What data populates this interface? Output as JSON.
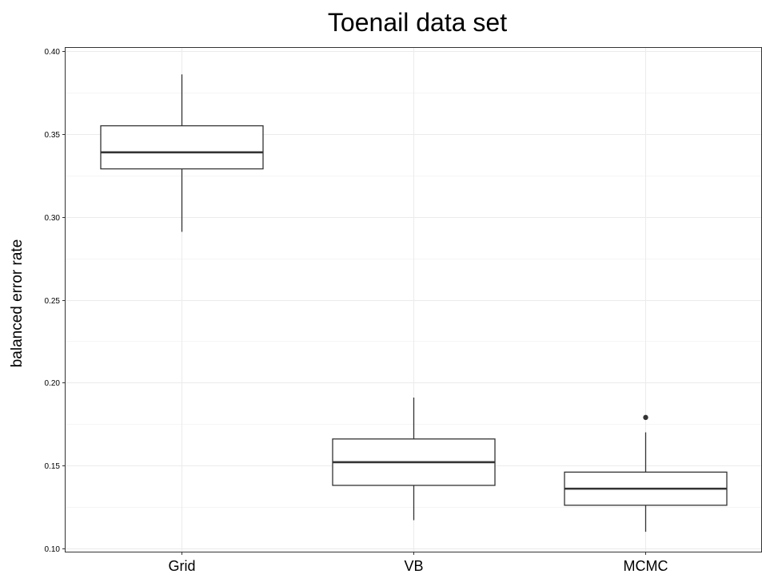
{
  "chart_data": {
    "type": "box",
    "title": "Toenail data set",
    "xlabel": "",
    "ylabel": "balanced error rate",
    "ylim": [
      0.098,
      0.402
    ],
    "y_ticks": [
      0.1,
      0.15,
      0.2,
      0.25,
      0.3,
      0.35,
      0.4
    ],
    "y_tick_labels": [
      "0.10",
      "0.15",
      "0.20",
      "0.25",
      "0.30",
      "0.35",
      "0.40"
    ],
    "grid": true,
    "legend": "none",
    "colors": {
      "box_stroke": "#333333",
      "box_fill": "#ffffff",
      "grid": "#ebebeb"
    },
    "categories": [
      "Grid",
      "VB",
      "MCMC"
    ],
    "boxes": [
      {
        "category": "Grid",
        "whisker_low": 0.291,
        "q1": 0.329,
        "median": 0.339,
        "q3": 0.355,
        "whisker_high": 0.386,
        "outliers": []
      },
      {
        "category": "VB",
        "whisker_low": 0.117,
        "q1": 0.138,
        "median": 0.152,
        "q3": 0.166,
        "whisker_high": 0.191,
        "outliers": []
      },
      {
        "category": "MCMC",
        "whisker_low": 0.11,
        "q1": 0.126,
        "median": 0.136,
        "q3": 0.146,
        "whisker_high": 0.17,
        "outliers": [
          0.179
        ]
      }
    ]
  }
}
